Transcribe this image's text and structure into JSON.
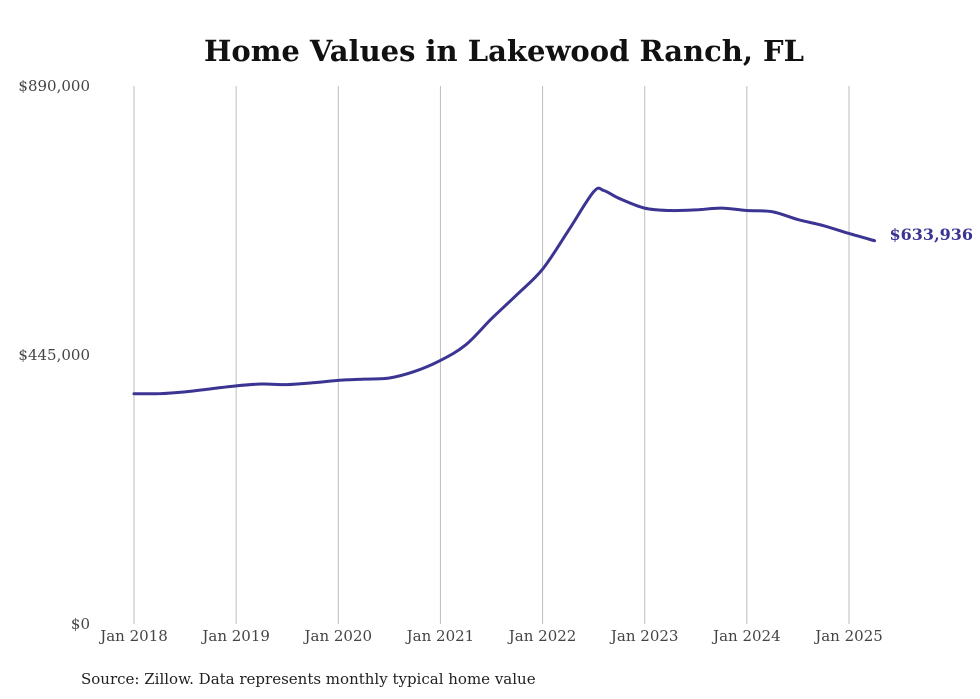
{
  "chart_data": {
    "type": "line",
    "title": "Home Values in Lakewood Ranch, FL",
    "xlabel": "",
    "ylabel": "",
    "ylim": [
      0,
      890000
    ],
    "yticks": [
      {
        "value": 0,
        "label": "$0"
      },
      {
        "value": 445000,
        "label": "$445,000"
      },
      {
        "value": 890000,
        "label": "$890,000"
      }
    ],
    "xlim": [
      2018.0,
      2025.25
    ],
    "xticks": [
      {
        "value": 2018,
        "label": "Jan 2018"
      },
      {
        "value": 2019,
        "label": "Jan 2019"
      },
      {
        "value": 2020,
        "label": "Jan 2020"
      },
      {
        "value": 2021,
        "label": "Jan 2021"
      },
      {
        "value": 2022,
        "label": "Jan 2022"
      },
      {
        "value": 2023,
        "label": "Jan 2023"
      },
      {
        "value": 2024,
        "label": "Jan 2024"
      },
      {
        "value": 2025,
        "label": "Jan 2025"
      }
    ],
    "grid": "vertical",
    "legend": "none",
    "line_color": "#3b3492",
    "end_label": "$633,936",
    "series": [
      {
        "values": [
          {
            "x": 2018.0,
            "y": 381000
          },
          {
            "x": 2018.25,
            "y": 381000
          },
          {
            "x": 2018.5,
            "y": 384000
          },
          {
            "x": 2018.75,
            "y": 389000
          },
          {
            "x": 2019.0,
            "y": 394000
          },
          {
            "x": 2019.25,
            "y": 397000
          },
          {
            "x": 2019.5,
            "y": 396000
          },
          {
            "x": 2019.75,
            "y": 399000
          },
          {
            "x": 2020.0,
            "y": 403000
          },
          {
            "x": 2020.25,
            "y": 405000
          },
          {
            "x": 2020.5,
            "y": 407000
          },
          {
            "x": 2020.75,
            "y": 418000
          },
          {
            "x": 2021.0,
            "y": 436000
          },
          {
            "x": 2021.25,
            "y": 462000
          },
          {
            "x": 2021.5,
            "y": 505000
          },
          {
            "x": 2021.75,
            "y": 545000
          },
          {
            "x": 2022.0,
            "y": 587000
          },
          {
            "x": 2022.25,
            "y": 650000
          },
          {
            "x": 2022.5,
            "y": 715000
          },
          {
            "x": 2022.6,
            "y": 717000
          },
          {
            "x": 2022.75,
            "y": 704000
          },
          {
            "x": 2023.0,
            "y": 688000
          },
          {
            "x": 2023.25,
            "y": 684000
          },
          {
            "x": 2023.5,
            "y": 685000
          },
          {
            "x": 2023.75,
            "y": 688000
          },
          {
            "x": 2024.0,
            "y": 684000
          },
          {
            "x": 2024.25,
            "y": 682000
          },
          {
            "x": 2024.5,
            "y": 669000
          },
          {
            "x": 2024.75,
            "y": 659000
          },
          {
            "x": 2025.0,
            "y": 646000
          },
          {
            "x": 2025.25,
            "y": 634000
          }
        ]
      }
    ]
  },
  "footer": {
    "source": "Source: Zillow. Data represents monthly typical home value"
  }
}
